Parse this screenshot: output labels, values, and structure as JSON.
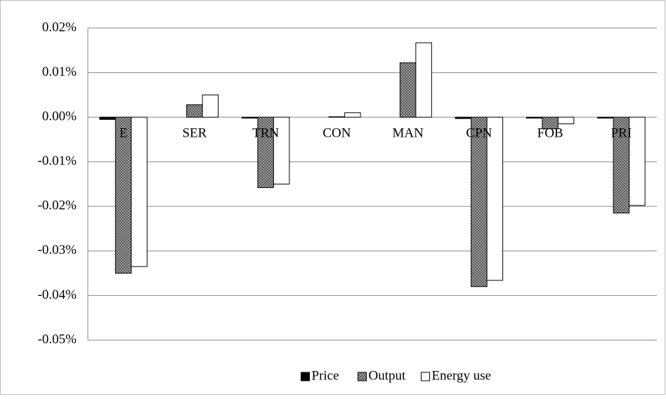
{
  "chart_data": {
    "type": "bar",
    "categories": [
      "E",
      "SER",
      "TRN",
      "CON",
      "MAN",
      "CPN",
      "FOB",
      "PRI"
    ],
    "series": [
      {
        "name": "Price",
        "color": "#000000",
        "values": [
          -0.0005,
          0,
          -0.0002,
          0,
          0,
          -0.0003,
          -0.0002,
          -0.0002
        ]
      },
      {
        "name": "Output",
        "color": "#a0a0a0",
        "values": [
          -0.035,
          0.0028,
          -0.0158,
          0.0001,
          0.0122,
          -0.038,
          -0.0026,
          -0.0215
        ]
      },
      {
        "name": "Energy use",
        "color": "#ffffff",
        "values": [
          -0.0335,
          0.005,
          -0.015,
          0.001,
          0.0167,
          -0.0366,
          -0.0015,
          -0.0198
        ]
      }
    ],
    "ylim": [
      -0.05,
      0.02
    ],
    "yticks": [
      {
        "value": -0.05,
        "label": "-0.05%"
      },
      {
        "value": -0.04,
        "label": "-0.04%"
      },
      {
        "value": -0.03,
        "label": "-0.03%"
      },
      {
        "value": -0.02,
        "label": "-0.02%"
      },
      {
        "value": -0.01,
        "label": "-0.01%"
      },
      {
        "value": 0,
        "label": "0.00%"
      },
      {
        "value": 0.01,
        "label": "0.01%"
      },
      {
        "value": 0.02,
        "label": "0.02%"
      }
    ],
    "grid": true,
    "legend": "bottom"
  }
}
